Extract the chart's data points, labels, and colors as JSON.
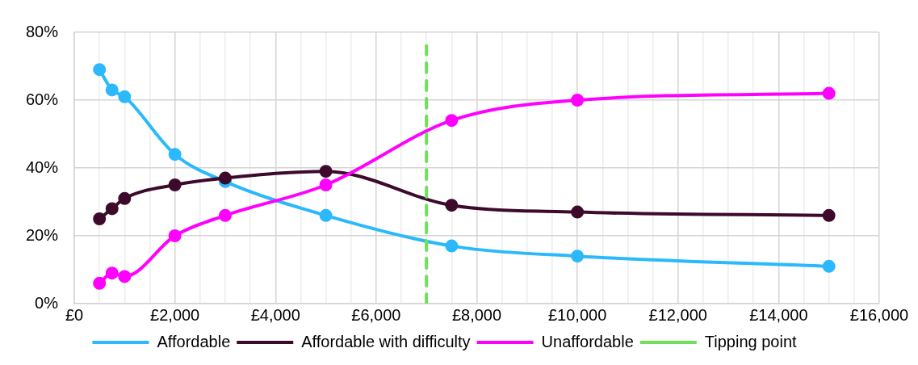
{
  "chart_data": {
    "type": "line",
    "x": [
      500,
      750,
      1000,
      2000,
      3000,
      5000,
      7500,
      10000,
      15000
    ],
    "series": [
      {
        "name": "Affordable",
        "color": "#2bb9fb",
        "values": [
          69,
          63,
          61,
          44,
          36,
          26,
          17,
          14,
          11
        ]
      },
      {
        "name": "Affordable with difficulty",
        "color": "#3d0a2c",
        "values": [
          25,
          28,
          31,
          35,
          37,
          39,
          29,
          27,
          26
        ]
      },
      {
        "name": "Unaffordable",
        "color": "#ff00ff",
        "values": [
          6,
          9,
          8,
          20,
          26,
          35,
          54,
          60,
          62
        ]
      },
      {
        "name": "Tipping point",
        "color": "#6ee05a",
        "x": [
          7000,
          7000
        ],
        "values": [
          0,
          76
        ],
        "marker": "none",
        "line_style": "dashed"
      }
    ],
    "xlim": [
      0,
      16000
    ],
    "xticks": [
      {
        "value": 0,
        "label": "£0"
      },
      {
        "value": 500,
        "label": null
      },
      {
        "value": 1000,
        "label": null
      },
      {
        "value": 1500,
        "label": null
      },
      {
        "value": 2000,
        "label": "£2,000"
      },
      {
        "value": 2500,
        "label": null
      },
      {
        "value": 3000,
        "label": null
      },
      {
        "value": 3500,
        "label": null
      },
      {
        "value": 4000,
        "label": "£4,000"
      },
      {
        "value": 4500,
        "label": null
      },
      {
        "value": 5000,
        "label": null
      },
      {
        "value": 5500,
        "label": null
      },
      {
        "value": 6000,
        "label": "£6,000"
      },
      {
        "value": 6500,
        "label": null
      },
      {
        "value": 7000,
        "label": null
      },
      {
        "value": 7500,
        "label": null
      },
      {
        "value": 8000,
        "label": "£8,000"
      },
      {
        "value": 8500,
        "label": null
      },
      {
        "value": 9000,
        "label": null
      },
      {
        "value": 9500,
        "label": null
      },
      {
        "value": 10000,
        "label": "£10,000"
      },
      {
        "value": 10500,
        "label": null
      },
      {
        "value": 11000,
        "label": null
      },
      {
        "value": 11500,
        "label": null
      },
      {
        "value": 12000,
        "label": "£12,000"
      },
      {
        "value": 12500,
        "label": null
      },
      {
        "value": 13000,
        "label": null
      },
      {
        "value": 13500,
        "label": null
      },
      {
        "value": 14000,
        "label": "£14,000"
      },
      {
        "value": 14500,
        "label": null
      },
      {
        "value": 15000,
        "label": null
      },
      {
        "value": 15500,
        "label": null
      },
      {
        "value": 16000,
        "label": "£16,000"
      }
    ],
    "ylim": [
      0,
      80
    ],
    "yticks": [
      {
        "value": 0,
        "label": "0%"
      },
      {
        "value": 20,
        "label": "20%"
      },
      {
        "value": 40,
        "label": "40%"
      },
      {
        "value": 60,
        "label": "60%"
      },
      {
        "value": 80,
        "label": "80%"
      }
    ],
    "grid": true,
    "legend": "bottom",
    "marker": "circle",
    "line_style": "solid"
  }
}
